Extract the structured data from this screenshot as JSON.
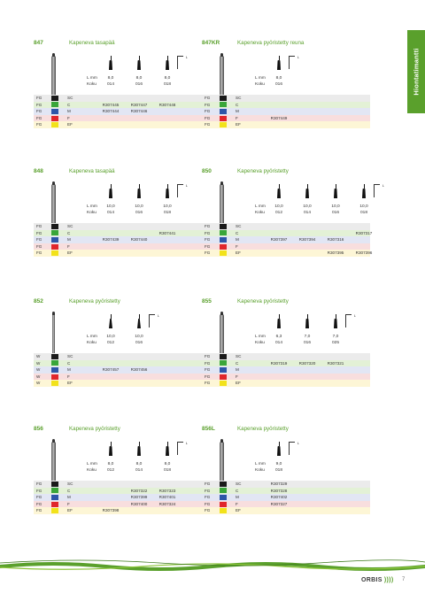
{
  "side_tab": "Hiontatimantti",
  "brand": {
    "name": "ORBIS",
    "mark": "))))"
  },
  "page_number": "7",
  "labels": {
    "length": "L mm",
    "size": "Koku",
    "bracket": "L"
  },
  "colors": {
    "SC": "#1a1a1a",
    "C": "#3aa63a",
    "M": "#2d56a8",
    "F": "#e0262b",
    "EF": "#f2e21a",
    "accent": "#5aa02c"
  },
  "products": [
    {
      "code": "847",
      "title": "Kapeneva tasapää",
      "shape": "taper",
      "sizes": [
        {
          "l": "8,0",
          "k": "014"
        },
        {
          "l": "8,0",
          "k": "016"
        },
        {
          "l": "8,0",
          "k": "018"
        }
      ],
      "rows": [
        {
          "shank": "FG",
          "grit": "SC",
          "refs": [
            "",
            "",
            ""
          ]
        },
        {
          "shank": "FG",
          "grit": "C",
          "refs": [
            "R307445",
            "R307447",
            "R307448"
          ]
        },
        {
          "shank": "FG",
          "grit": "M",
          "refs": [
            "R307444",
            "R307446",
            ""
          ]
        },
        {
          "shank": "FG",
          "grit": "F",
          "refs": [
            "",
            "",
            ""
          ]
        },
        {
          "shank": "FG",
          "grit": "EF",
          "refs": [
            "",
            "",
            ""
          ]
        }
      ]
    },
    {
      "code": "847KR",
      "title": "Kapeneva pyöristetty reuna",
      "shape": "taper",
      "sizes": [
        {
          "l": "8,0",
          "k": "016"
        }
      ],
      "rows": [
        {
          "shank": "FG",
          "grit": "SC",
          "refs": [
            ""
          ]
        },
        {
          "shank": "FG",
          "grit": "C",
          "refs": [
            ""
          ]
        },
        {
          "shank": "FG",
          "grit": "M",
          "refs": [
            ""
          ]
        },
        {
          "shank": "FG",
          "grit": "F",
          "refs": [
            "R307449"
          ]
        },
        {
          "shank": "FG",
          "grit": "EF",
          "refs": [
            ""
          ]
        }
      ]
    },
    {
      "code": "848",
      "title": "Kapeneva tasapää",
      "shape": "taper",
      "sizes": [
        {
          "l": "10,0",
          "k": "014"
        },
        {
          "l": "10,0",
          "k": "016"
        },
        {
          "l": "10,0",
          "k": "018"
        }
      ],
      "rows": [
        {
          "shank": "FG",
          "grit": "SC",
          "refs": [
            "",
            "",
            ""
          ]
        },
        {
          "shank": "FG",
          "grit": "C",
          "refs": [
            "",
            "",
            "R307441"
          ]
        },
        {
          "shank": "FG",
          "grit": "M",
          "refs": [
            "R307439",
            "R307440",
            ""
          ]
        },
        {
          "shank": "FG",
          "grit": "F",
          "refs": [
            "",
            "",
            ""
          ]
        },
        {
          "shank": "FG",
          "grit": "EF",
          "refs": [
            "",
            "",
            ""
          ]
        }
      ]
    },
    {
      "code": "850",
      "title": "Kapeneva pyöristetty",
      "shape": "taper",
      "sizes": [
        {
          "l": "10,0",
          "k": "012"
        },
        {
          "l": "10,0",
          "k": "014"
        },
        {
          "l": "10,0",
          "k": "016"
        },
        {
          "l": "10,0",
          "k": "018"
        }
      ],
      "rows": [
        {
          "shank": "FG",
          "grit": "SC",
          "refs": [
            "",
            "",
            "",
            ""
          ]
        },
        {
          "shank": "FG",
          "grit": "C",
          "refs": [
            "",
            "",
            "",
            "R307317"
          ]
        },
        {
          "shank": "FG",
          "grit": "M",
          "refs": [
            "R307397",
            "R307394",
            "R307316",
            ""
          ]
        },
        {
          "shank": "FG",
          "grit": "F",
          "refs": [
            "",
            "",
            "",
            ""
          ]
        },
        {
          "shank": "FG",
          "grit": "EF",
          "refs": [
            "",
            "",
            "R307395",
            "R307396"
          ]
        }
      ]
    },
    {
      "code": "852",
      "title": "Kapeneva pyöristetty",
      "shape": "point",
      "sizes": [
        {
          "l": "10,0",
          "k": "012"
        },
        {
          "l": "10,0",
          "k": "016"
        }
      ],
      "rows": [
        {
          "shank": "W",
          "grit": "SC",
          "refs": [
            "",
            ""
          ]
        },
        {
          "shank": "W",
          "grit": "C",
          "refs": [
            "",
            ""
          ]
        },
        {
          "shank": "W",
          "grit": "M",
          "refs": [
            "R307457",
            "R307456"
          ]
        },
        {
          "shank": "W",
          "grit": "F",
          "refs": [
            "",
            ""
          ]
        },
        {
          "shank": "W",
          "grit": "EF",
          "refs": [
            "",
            ""
          ]
        }
      ]
    },
    {
      "code": "855",
      "title": "Kapeneva pyöristetty",
      "shape": "taper",
      "sizes": [
        {
          "l": "6,3",
          "k": "014"
        },
        {
          "l": "7,0",
          "k": "016"
        },
        {
          "l": "7,0",
          "k": "025"
        }
      ],
      "rows": [
        {
          "shank": "FG",
          "grit": "SC",
          "refs": [
            "",
            "",
            ""
          ]
        },
        {
          "shank": "FG",
          "grit": "C",
          "refs": [
            "R307319",
            "R307320",
            "R307321"
          ]
        },
        {
          "shank": "FG",
          "grit": "M",
          "refs": [
            "",
            "",
            ""
          ]
        },
        {
          "shank": "FG",
          "grit": "F",
          "refs": [
            "",
            "",
            ""
          ]
        },
        {
          "shank": "FG",
          "grit": "EF",
          "refs": [
            "",
            "",
            ""
          ]
        }
      ]
    },
    {
      "code": "856",
      "title": "Kapeneva pyöristetty",
      "shape": "taper",
      "sizes": [
        {
          "l": "8,0",
          "k": "012"
        },
        {
          "l": "8,0",
          "k": "014"
        },
        {
          "l": "8,0",
          "k": "018"
        }
      ],
      "rows": [
        {
          "shank": "FG",
          "grit": "SC",
          "refs": [
            "",
            "",
            ""
          ]
        },
        {
          "shank": "FG",
          "grit": "C",
          "refs": [
            "",
            "R307322",
            "R307323"
          ]
        },
        {
          "shank": "FG",
          "grit": "M",
          "refs": [
            "",
            "R307399",
            "R307401"
          ]
        },
        {
          "shank": "FG",
          "grit": "F",
          "refs": [
            "",
            "R307400",
            "R307324"
          ]
        },
        {
          "shank": "FG",
          "grit": "EF",
          "refs": [
            "R307398",
            "",
            ""
          ]
        }
      ]
    },
    {
      "code": "856L",
      "title": "Kapeneva pyöristetty",
      "shape": "taper",
      "sizes": [
        {
          "l": "9,0",
          "k": "018"
        }
      ],
      "rows": [
        {
          "shank": "FG",
          "grit": "SC",
          "refs": [
            "R307329"
          ]
        },
        {
          "shank": "FG",
          "grit": "C",
          "refs": [
            "R307328"
          ]
        },
        {
          "shank": "FG",
          "grit": "M",
          "refs": [
            "R307402"
          ]
        },
        {
          "shank": "FG",
          "grit": "F",
          "refs": [
            "R307327"
          ]
        },
        {
          "shank": "FG",
          "grit": "EF",
          "refs": [
            ""
          ]
        }
      ]
    }
  ]
}
